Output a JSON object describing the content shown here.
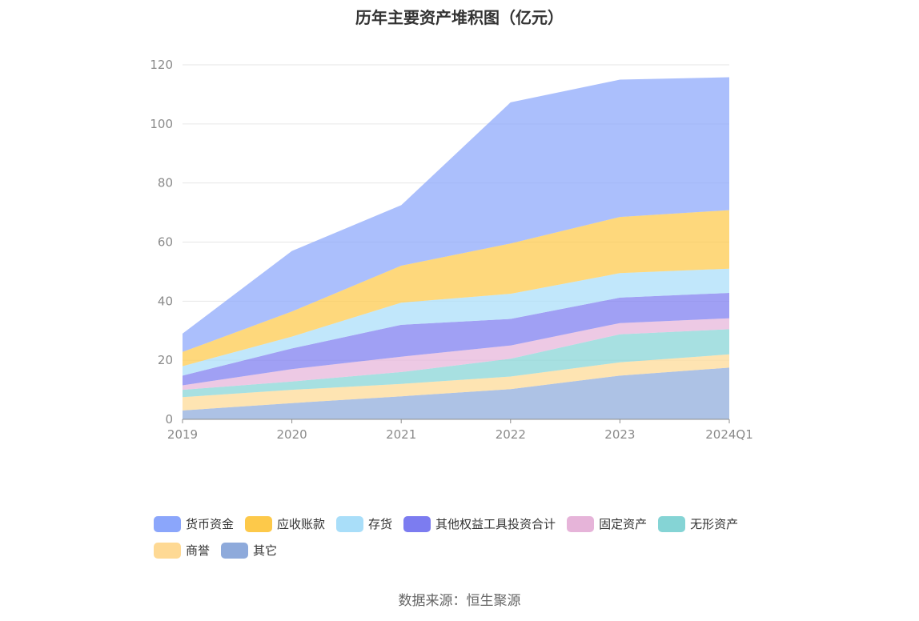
{
  "chart_data": {
    "type": "area",
    "title": "历年主要资产堆积图（亿元）",
    "stacked": true,
    "categories": [
      "2019",
      "2020",
      "2021",
      "2022",
      "2023",
      "2024Q1"
    ],
    "ylim": [
      0,
      120
    ],
    "yticks": [
      "0",
      "20",
      "40",
      "60",
      "80",
      "100",
      "120"
    ],
    "grid": true,
    "legend_position": "bottom",
    "series": [
      {
        "name": "其它",
        "color": "#8eaadb",
        "values": [
          3.0,
          5.5,
          7.8,
          10.2,
          14.8,
          17.5
        ]
      },
      {
        "name": "商誉",
        "color": "#fed994",
        "values": [
          4.5,
          4.5,
          4.2,
          4.3,
          4.5,
          4.5
        ]
      },
      {
        "name": "无形资产",
        "color": "#85d4d5",
        "values": [
          2.5,
          2.8,
          4.0,
          6.0,
          9.5,
          8.5
        ]
      },
      {
        "name": "固定资产",
        "color": "#e6b4d9",
        "values": [
          1.5,
          4.2,
          5.2,
          4.5,
          3.8,
          3.7
        ]
      },
      {
        "name": "其他权益工具投资合计",
        "color": "#7c7cf0",
        "values": [
          3.3,
          7.0,
          10.8,
          9.0,
          8.6,
          8.6
        ]
      },
      {
        "name": "存货",
        "color": "#a9def9",
        "values": [
          3.2,
          4.0,
          7.5,
          8.5,
          8.3,
          8.2
        ]
      },
      {
        "name": "应收账款",
        "color": "#fdc94a",
        "values": [
          4.8,
          8.5,
          12.5,
          17.0,
          19.0,
          19.8
        ]
      },
      {
        "name": "货币资金",
        "color": "#8ba6fb",
        "values": [
          6.2,
          20.5,
          20.5,
          47.8,
          46.5,
          45.0
        ]
      }
    ]
  },
  "legend_order": [
    "货币资金",
    "应收账款",
    "存货",
    "其他权益工具投资合计",
    "固定资产",
    "无形资产",
    "商誉",
    "其它"
  ],
  "source_text": "数据来源：恒生聚源"
}
